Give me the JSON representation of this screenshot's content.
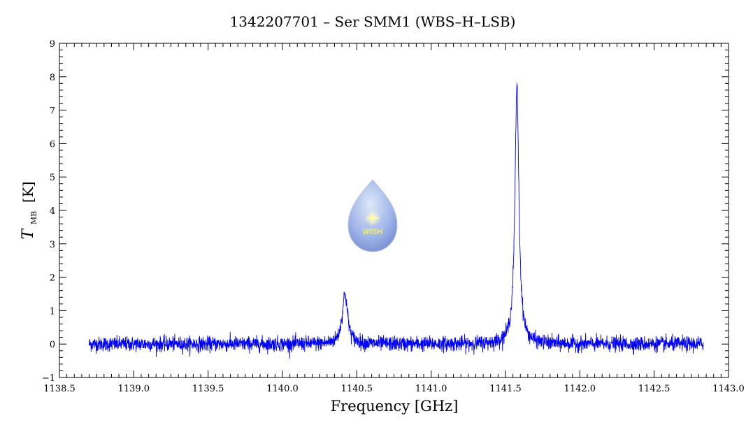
{
  "chart_data": {
    "type": "line",
    "title": "1342207701 – Ser SMM1 (WBS–H–LSB)",
    "xlabel": "Frequency [GHz]",
    "ylabel": {
      "symbol": "T",
      "subscript": "MB",
      "unit": "[K]"
    },
    "xlim": [
      1138.5,
      1143.0
    ],
    "ylim": [
      -1,
      9
    ],
    "xticks": [
      "1138.5",
      "1139.0",
      "1139.5",
      "1140.0",
      "1140.5",
      "1141.0",
      "1141.5",
      "1142.0",
      "1142.5",
      "1143.0"
    ],
    "yticks": [
      "−1",
      "0",
      "1",
      "2",
      "3",
      "4",
      "5",
      "6",
      "7",
      "8",
      "9"
    ],
    "x_range": [
      1138.7,
      1142.83
    ],
    "series": [
      {
        "color": "#0000ff",
        "baseline": 0.0,
        "noise_amplitude": 0.2,
        "peaks": [
          {
            "center": 1140.42,
            "height": 1.5,
            "width": 0.022
          },
          {
            "center": 1141.577,
            "height": 7.7,
            "width": 0.016
          }
        ]
      }
    ],
    "grid": false,
    "legend": "none"
  },
  "logo": {
    "text": "WISH",
    "color_top": "#e6f0fb",
    "color_bottom": "#7e94d6",
    "text_color": "#f2ee6a"
  }
}
